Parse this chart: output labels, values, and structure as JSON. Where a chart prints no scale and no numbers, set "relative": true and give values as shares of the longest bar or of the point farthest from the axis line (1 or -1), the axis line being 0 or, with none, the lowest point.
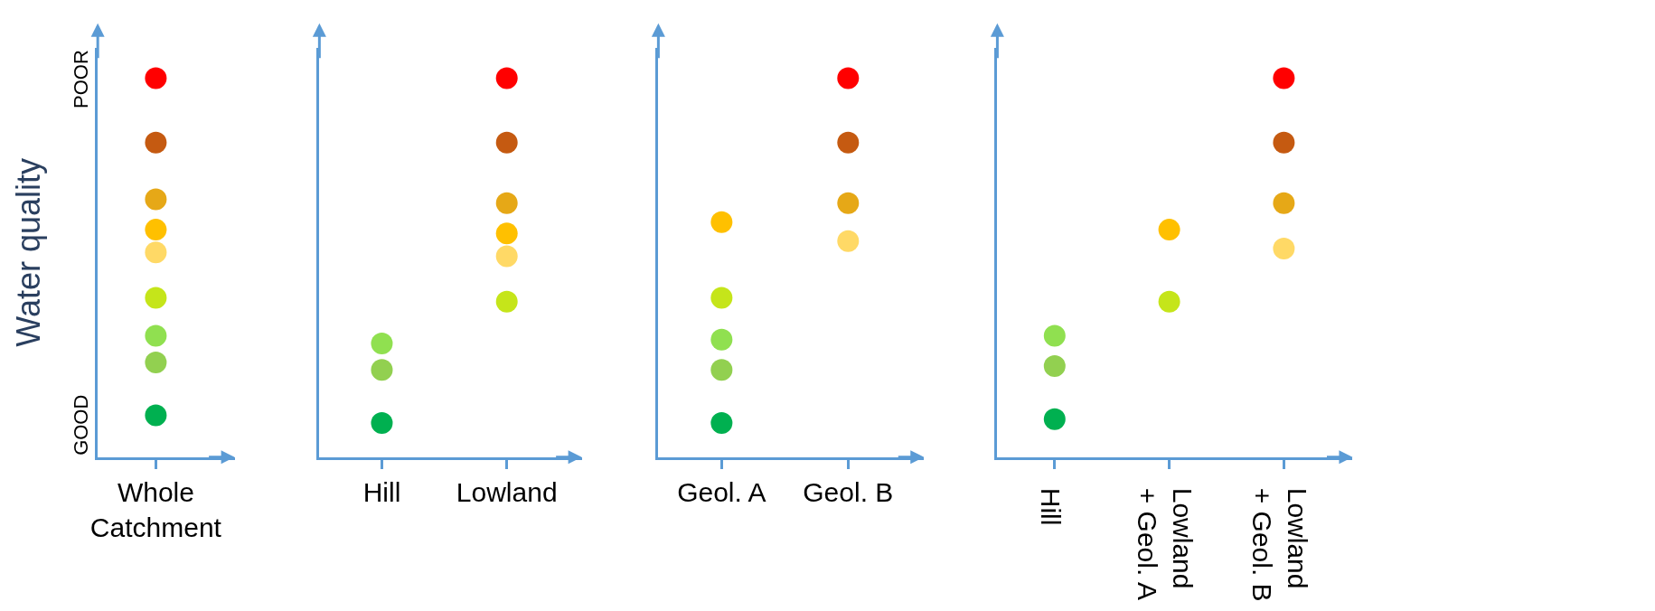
{
  "chart_data": [
    {
      "type": "scatter",
      "relative": true,
      "ylabel": "Water quality",
      "annotations": [
        "GOOD",
        "POOR"
      ],
      "marker": "circle",
      "categories": [
        "Whole Catchment"
      ],
      "series": [
        {
          "x": [
            "Whole Catchment",
            "Whole Catchment",
            "Whole Catchment",
            "Whole Catchment",
            "Whole Catchment",
            "Whole Catchment",
            "Whole Catchment",
            "Whole Catchment",
            "Whole Catchment"
          ],
          "values": [
            1,
            0.83,
            0.68,
            0.6,
            0.54,
            0.42,
            0.32,
            0.25,
            0.11
          ],
          "colors": [
            "#ff0000",
            "#c55a11",
            "#e6a817",
            "#ffc000",
            "#ffd966",
            "#c5e51a",
            "#90e050",
            "#92d050",
            "#00b050"
          ]
        }
      ]
    },
    {
      "type": "scatter",
      "relative": true,
      "marker": "circle",
      "categories": [
        "Hill",
        "Lowland"
      ],
      "series": [
        {
          "x": [
            "Hill",
            "Hill",
            "Hill",
            "Lowland",
            "Lowland",
            "Lowland",
            "Lowland",
            "Lowland",
            "Lowland"
          ],
          "values": [
            0.3,
            0.23,
            0.09,
            1,
            0.83,
            0.67,
            0.59,
            0.53,
            0.41
          ],
          "colors": [
            "#90e050",
            "#92d050",
            "#00b050",
            "#ff0000",
            "#c55a11",
            "#e6a817",
            "#ffc000",
            "#ffd966",
            "#c5e51a"
          ]
        }
      ]
    },
    {
      "type": "scatter",
      "relative": true,
      "marker": "circle",
      "categories": [
        "Geol. A",
        "Geol. B"
      ],
      "series": [
        {
          "x": [
            "Geol. A",
            "Geol. A",
            "Geol. A",
            "Geol. A",
            "Geol. A",
            "Geol. B",
            "Geol. B",
            "Geol. B",
            "Geol. B"
          ],
          "values": [
            0.62,
            0.42,
            0.31,
            0.23,
            0.09,
            1,
            0.83,
            0.67,
            0.57
          ],
          "colors": [
            "#ffc000",
            "#c5e51a",
            "#90e050",
            "#92d050",
            "#00b050",
            "#ff0000",
            "#c55a11",
            "#e6a817",
            "#ffd966"
          ]
        }
      ]
    },
    {
      "type": "scatter",
      "relative": true,
      "marker": "circle",
      "categories": [
        "Hill",
        "Lowland + Geol. A",
        "Lowland + Geol. B"
      ],
      "series": [
        {
          "x": [
            "Hill",
            "Hill",
            "Hill",
            "Lowland + Geol. A",
            "Lowland + Geol. A",
            "Lowland + Geol. B",
            "Lowland + Geol. B",
            "Lowland + Geol. B",
            "Lowland + Geol. B"
          ],
          "values": [
            0.32,
            0.24,
            0.1,
            0.6,
            0.41,
            1,
            0.83,
            0.67,
            0.55
          ],
          "colors": [
            "#90e050",
            "#92d050",
            "#00b050",
            "#ffc000",
            "#c5e51a",
            "#ff0000",
            "#c55a11",
            "#e6a817",
            "#ffd966"
          ]
        }
      ]
    }
  ]
}
